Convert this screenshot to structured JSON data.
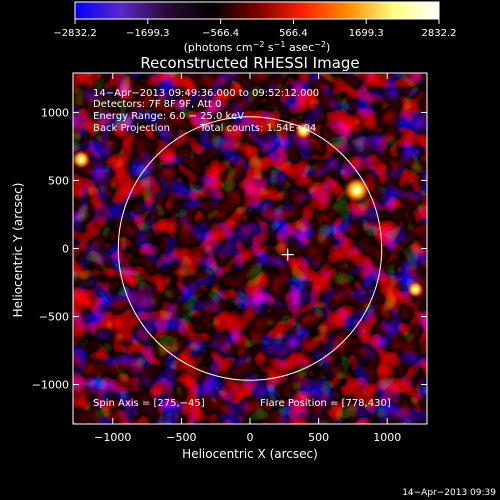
{
  "chart_data": {
    "type": "heatmap",
    "title": "Reconstructed RHESSI Image",
    "xlabel": "Heliocentric X (arcsec)",
    "ylabel": "Heliocentric Y (arcsec)",
    "xlim": [
      -1290,
      1290
    ],
    "ylim": [
      -1290,
      1290
    ],
    "xticks": [
      -1000,
      -500,
      0,
      500,
      1000
    ],
    "yticks": [
      -1000,
      -500,
      0,
      500,
      1000
    ],
    "xticklabels": [
      "−1000",
      "−500",
      "0",
      "500",
      "1000"
    ],
    "yticklabels": [
      "−1000",
      "−500",
      "0",
      "500",
      "1000"
    ],
    "colorbar": {
      "range": [
        -2832.2,
        2832.2
      ],
      "ticks": [
        -2832.2,
        -1699.3,
        -566.4,
        566.4,
        1699.3,
        2832.2
      ],
      "ticklabels": [
        "−2832.2",
        "−1699.3",
        "−566.4",
        "566.4",
        "1699.3",
        "2832.2"
      ],
      "units_prefix": "(photons cm",
      "units_exp1": "−2",
      "units_mid": " s",
      "units_exp2": "−1",
      "units_mid2": " asec",
      "units_exp3": "−2",
      "units_suffix": ")",
      "colors": [
        "#0000ff",
        "#5a28c8",
        "#2a0a3a",
        "#000000",
        "#7a0000",
        "#ff2000",
        "#ff8c00",
        "#ffff80",
        "#ffffff"
      ]
    },
    "annotations": {
      "time": "14−Apr−2013 09:49:36.000 to 09:52:12.000",
      "detectors": "Detectors: 7F 8F 9F, Att 0",
      "energy": "Energy Range: 6.0 − 25.0 keV",
      "method": "Back Projection",
      "counts": "Total counts: 1.54E+04",
      "spin_axis": "Spin Axis = [275,−45]",
      "flare_position": "Flare Position = [778,430]"
    },
    "solar_limb_radius": 960,
    "marker_position": [
      275,
      -45
    ],
    "bright_sources": [
      {
        "x": 778,
        "y": 430,
        "value": 2832
      },
      {
        "x": -1230,
        "y": 655,
        "value": 1700
      },
      {
        "x": 390,
        "y": 865,
        "value": 1500
      },
      {
        "x": 1205,
        "y": -300,
        "value": 1400
      }
    ],
    "grid": false
  },
  "footer_timestamp": "14−Apr−2013 09:39"
}
